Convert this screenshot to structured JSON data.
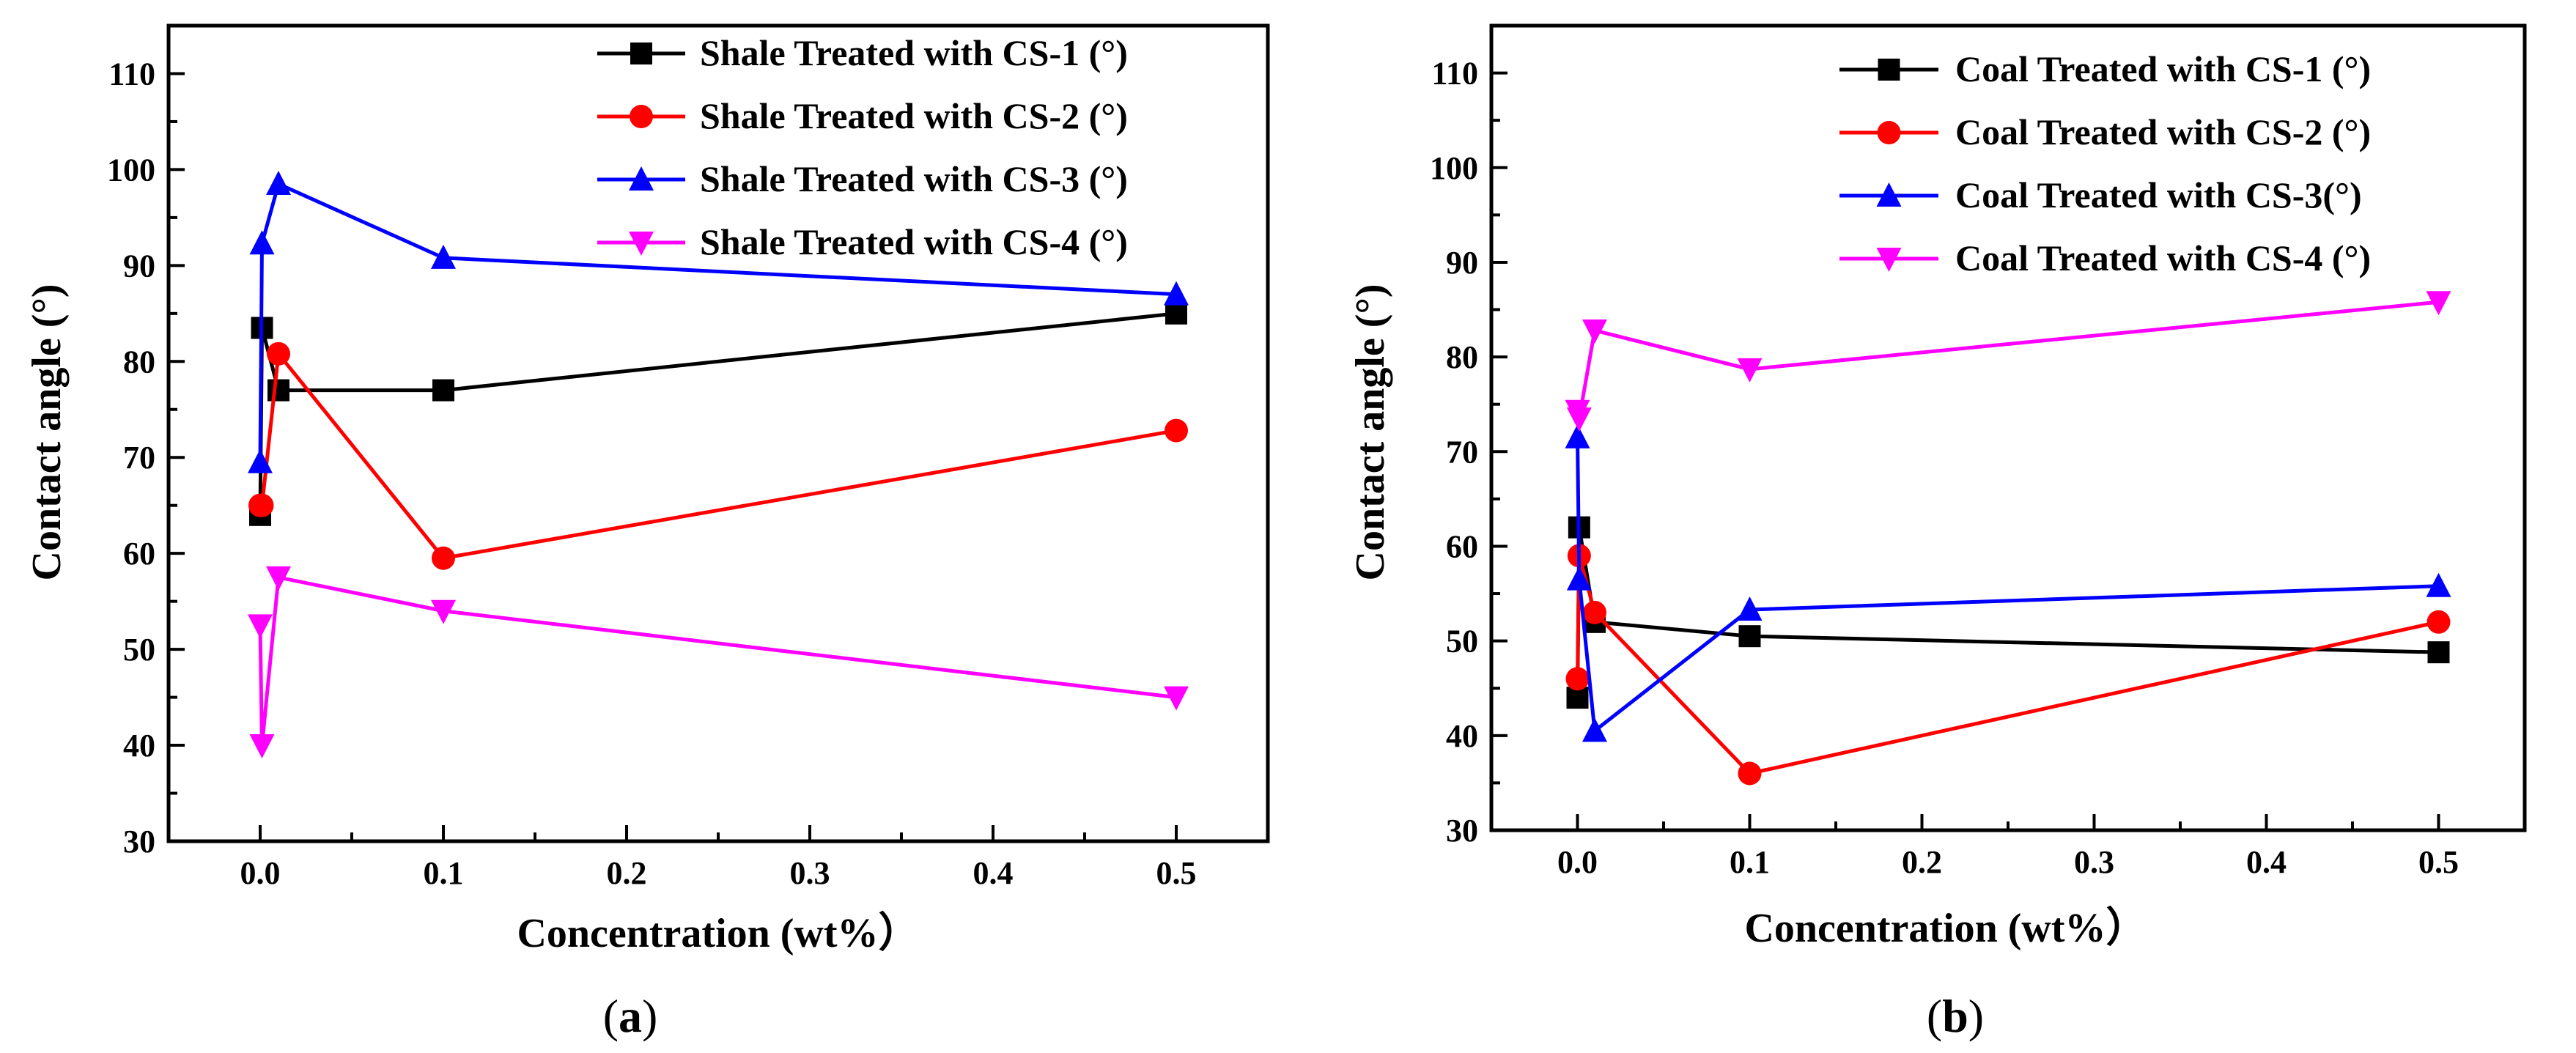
{
  "chart_data": [
    {
      "type": "line",
      "panel_label": "a",
      "xlabel": "Concentration (wt%）",
      "ylabel": "Contact angle (°)",
      "xlim": [
        -0.05,
        0.55
      ],
      "ylim": [
        30,
        115
      ],
      "xticks": [
        "0.0",
        "0.1",
        "0.2",
        "0.3",
        "0.4",
        "0.5"
      ],
      "yticks": [
        "30",
        "40",
        "50",
        "60",
        "70",
        "80",
        "90",
        "100",
        "110"
      ],
      "legend_position": "top-right",
      "series": [
        {
          "name": "Shale Treated with CS-1 (°)",
          "color": "#000000",
          "marker": "square",
          "x": [
            0,
            0.001,
            0.01,
            0.1,
            0.5
          ],
          "y": [
            64,
            83.5,
            77,
            77,
            85
          ]
        },
        {
          "name": "Shale Treated with CS-2 (°)",
          "color": "#ff0000",
          "marker": "circle",
          "x": [
            0,
            0.001,
            0.01,
            0.1,
            0.5
          ],
          "y": [
            65,
            65,
            80.8,
            59.5,
            72.8
          ]
        },
        {
          "name": "Shale Treated with CS-3 (°)",
          "color": "#0000ff",
          "marker": "triangle-up",
          "x": [
            0,
            0.001,
            0.01,
            0.1,
            0.5
          ],
          "y": [
            69.5,
            92.3,
            98.5,
            90.8,
            87
          ]
        },
        {
          "name": "Shale Treated with CS-4 (°)",
          "color": "#ff00ff",
          "marker": "triangle-down",
          "x": [
            0,
            0.001,
            0.01,
            0.1,
            0.5
          ],
          "y": [
            52.5,
            40,
            57.5,
            54,
            45
          ]
        }
      ]
    },
    {
      "type": "line",
      "panel_label": "b",
      "xlabel": "Concentration (wt%）",
      "ylabel": "Contact angle (°)",
      "xlim": [
        -0.05,
        0.55
      ],
      "ylim": [
        30,
        115
      ],
      "xticks": [
        "0.0",
        "0.1",
        "0.2",
        "0.3",
        "0.4",
        "0.5"
      ],
      "yticks": [
        "30",
        "40",
        "50",
        "60",
        "70",
        "80",
        "90",
        "100",
        "110"
      ],
      "legend_position": "top-right",
      "series": [
        {
          "name": "Coal Treated with CS-1 (°)",
          "color": "#000000",
          "marker": "square",
          "x": [
            0,
            0.001,
            0.01,
            0.1,
            0.5
          ],
          "y": [
            44,
            62,
            52,
            50.5,
            48.8
          ]
        },
        {
          "name": "Coal Treated with CS-2 (°)",
          "color": "#ff0000",
          "marker": "circle",
          "x": [
            0,
            0.001,
            0.01,
            0.1,
            0.5
          ],
          "y": [
            46,
            59,
            53,
            36,
            52
          ]
        },
        {
          "name": "Coal Treated with CS-3(°)",
          "color": "#0000ff",
          "marker": "triangle-up",
          "x": [
            0,
            0.001,
            0.01,
            0.1,
            0.5
          ],
          "y": [
            71.5,
            56.5,
            40.5,
            53.3,
            55.8
          ]
        },
        {
          "name": "Coal Treated with CS-4 (°)",
          "color": "#ff00ff",
          "marker": "triangle-down",
          "x": [
            0,
            0.001,
            0.01,
            0.1,
            0.5
          ],
          "y": [
            74.3,
            73.5,
            82.8,
            78.7,
            85.8
          ]
        }
      ]
    }
  ]
}
